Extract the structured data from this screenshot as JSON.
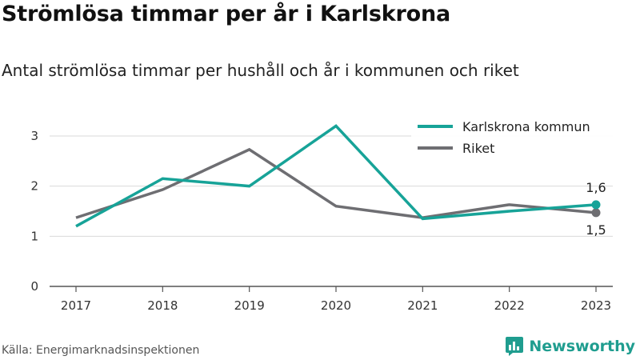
{
  "title": "Strömlösa timmar per år i Karlskrona",
  "subtitle": "Antal strömlösa timmar per hushåll och år i kommunen och riket",
  "source": "Källa: Energimarknadsinspektionen",
  "brand": "Newsworthy",
  "colors": {
    "karlskrona": "#17a398",
    "riket": "#6e6e72",
    "grid": "#d9d9d9",
    "axis": "#555555",
    "brand": "#1f9d8f"
  },
  "chart_data": {
    "type": "line",
    "x": [
      "2017",
      "2018",
      "2019",
      "2020",
      "2021",
      "2022",
      "2023"
    ],
    "series": [
      {
        "name": "Karlskrona kommun",
        "color_key": "karlskrona",
        "values": [
          1.2,
          2.15,
          2.0,
          3.2,
          1.35,
          1.5,
          1.63
        ]
      },
      {
        "name": "Riket",
        "color_key": "riket",
        "values": [
          1.37,
          1.93,
          2.73,
          1.6,
          1.37,
          1.63,
          1.47
        ]
      }
    ],
    "yticks": [
      "0",
      "1",
      "2",
      "3"
    ],
    "ylim": [
      0,
      3.4
    ],
    "grid": true,
    "legend_position": "top-right",
    "end_labels": {
      "karlskrona": "1,6",
      "riket": "1,5"
    }
  }
}
